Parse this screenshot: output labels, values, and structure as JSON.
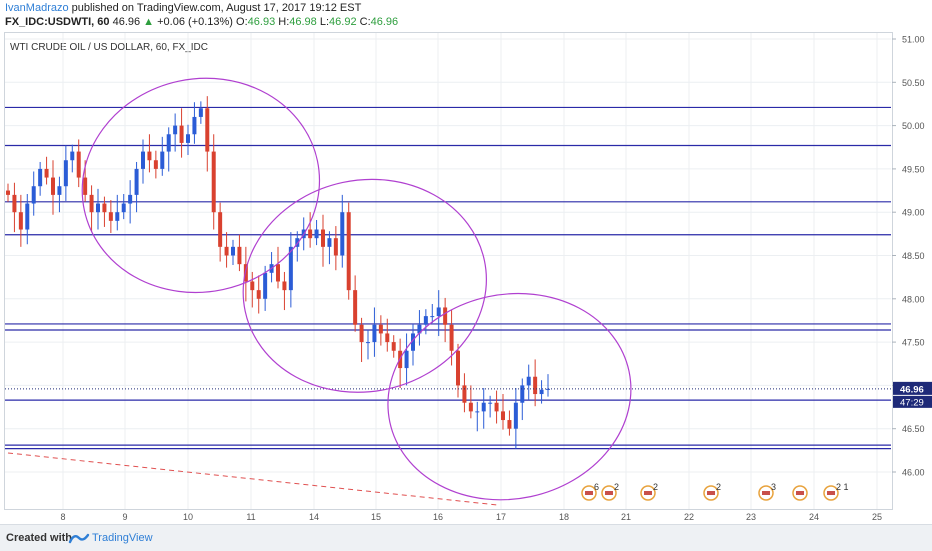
{
  "header": {
    "author": "IvanMadrazo",
    "published": "published on TradingView.com, August 17, 2017 19:12 EST",
    "symbol": "FX_IDC:USDWTI, 60",
    "last": "46.96",
    "change": "+0.06 (+0.13%)",
    "o_label": "O:",
    "o_val": "46.93",
    "h_label": "H:",
    "h_val": "46.98",
    "l_label": "L:",
    "l_val": "46.92",
    "c_label": "C:",
    "c_val": "46.96"
  },
  "chart_title": "WTI CRUDE OIL / US DOLLAR, 60, FX_IDC",
  "footer": {
    "created_with": "Created with",
    "brand": "TradingView"
  },
  "colors": {
    "up": "#2b5cd6",
    "down": "#d9412f",
    "hline": "#2a2aa8",
    "ellipse": "#b040d0",
    "trend": "#e05050",
    "last_label": "#1e2a78"
  },
  "chart_data": {
    "type": "candlestick",
    "title": "WTI CRUDE OIL / US DOLLAR, 60, FX_IDC",
    "ylim": [
      45.6,
      51.05
    ],
    "yticks": [
      "51.00",
      "50.50",
      "50.00",
      "49.50",
      "49.00",
      "48.50",
      "48.00",
      "47.50",
      "47.00",
      "46.50",
      "46.00"
    ],
    "xticks": [
      "8",
      "9",
      "10",
      "11",
      "14",
      "15",
      "16",
      "17",
      "18",
      "21",
      "22",
      "23",
      "24",
      "25"
    ],
    "last_price": "46.96",
    "countdown": "47:29",
    "horizontal_levels": [
      50.21,
      49.77,
      49.12,
      48.74,
      47.71,
      47.64,
      46.83,
      46.31,
      46.27
    ],
    "series_close": [
      49.2,
      49.0,
      48.8,
      49.1,
      49.3,
      49.5,
      49.4,
      49.2,
      49.3,
      49.6,
      49.7,
      49.4,
      49.2,
      49.0,
      49.1,
      49.0,
      48.9,
      49.0,
      49.1,
      49.2,
      49.5,
      49.7,
      49.6,
      49.5,
      49.7,
      49.9,
      50.0,
      49.8,
      49.9,
      50.1,
      50.2,
      49.7,
      49.0,
      48.6,
      48.5,
      48.6,
      48.4,
      48.2,
      48.1,
      48.0,
      48.3,
      48.4,
      48.2,
      48.1,
      48.6,
      48.7,
      48.8,
      48.7,
      48.8,
      48.6,
      48.7,
      48.5,
      49.0,
      48.1,
      47.7,
      47.5,
      47.5,
      47.7,
      47.6,
      47.5,
      47.4,
      47.2,
      47.4,
      47.6,
      47.7,
      47.8,
      47.8,
      47.9,
      47.7,
      47.4,
      47.0,
      46.8,
      46.7,
      46.7,
      46.8,
      46.8,
      46.7,
      46.6,
      46.5,
      46.8,
      47.0,
      47.1,
      46.9,
      46.95,
      46.96
    ],
    "ellipses": [
      {
        "cx_idx": 30.0,
        "cy": 49.31,
        "rx_days": 1.9,
        "ry": 1.23
      },
      {
        "cx_idx": 55.5,
        "cy": 48.15,
        "rx_days": 1.95,
        "ry": 1.22
      },
      {
        "cx_idx": 78.0,
        "cy": 46.87,
        "rx_days": 1.95,
        "ry": 1.18
      }
    ],
    "trend_line": [
      [
        0,
        46.22
      ],
      [
        76,
        45.62
      ]
    ],
    "event_icons": [
      {
        "at": "17.8",
        "count": "6"
      },
      {
        "at": "18.2",
        "count": "2"
      },
      {
        "at": "18.8",
        "count": "2"
      },
      {
        "at": "22.3",
        "count": "2"
      },
      {
        "at": "23.4",
        "count": "3"
      },
      {
        "at": "23.8",
        "count": ""
      },
      {
        "at": "24.3",
        "count": "2 1"
      }
    ]
  }
}
